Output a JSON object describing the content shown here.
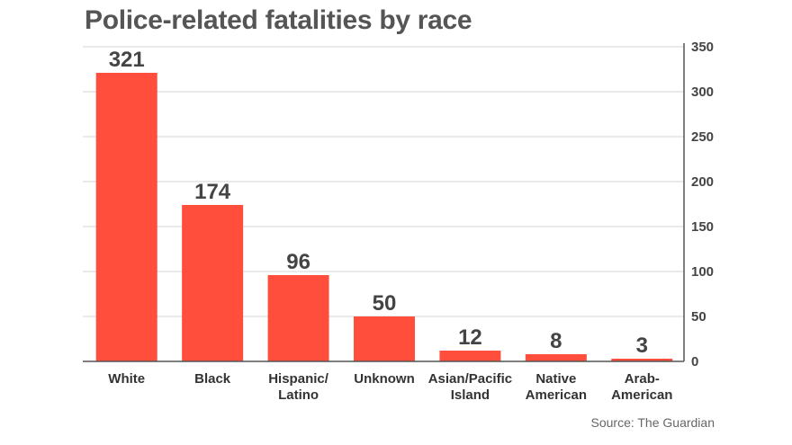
{
  "title": "Police-related fatalities by race",
  "source": "Source: The Guardian",
  "colors": {
    "bar": "#ff4e3b",
    "grid": "#d4d4d4",
    "axis": "#555555"
  },
  "chart_data": {
    "type": "bar",
    "title": "Police-related fatalities by race",
    "categories": [
      [
        "White"
      ],
      [
        "Black"
      ],
      [
        "Hispanic/",
        "Latino"
      ],
      [
        "Unknown"
      ],
      [
        "Asian/Pacific",
        "Island"
      ],
      [
        "Native",
        "American"
      ],
      [
        "Arab-",
        "American"
      ]
    ],
    "values": [
      321,
      174,
      96,
      50,
      12,
      8,
      3
    ],
    "ylim": [
      0,
      350
    ],
    "yticks": [
      0,
      50,
      100,
      150,
      200,
      250,
      300,
      350
    ],
    "y_axis_side": "right",
    "grid": true
  }
}
